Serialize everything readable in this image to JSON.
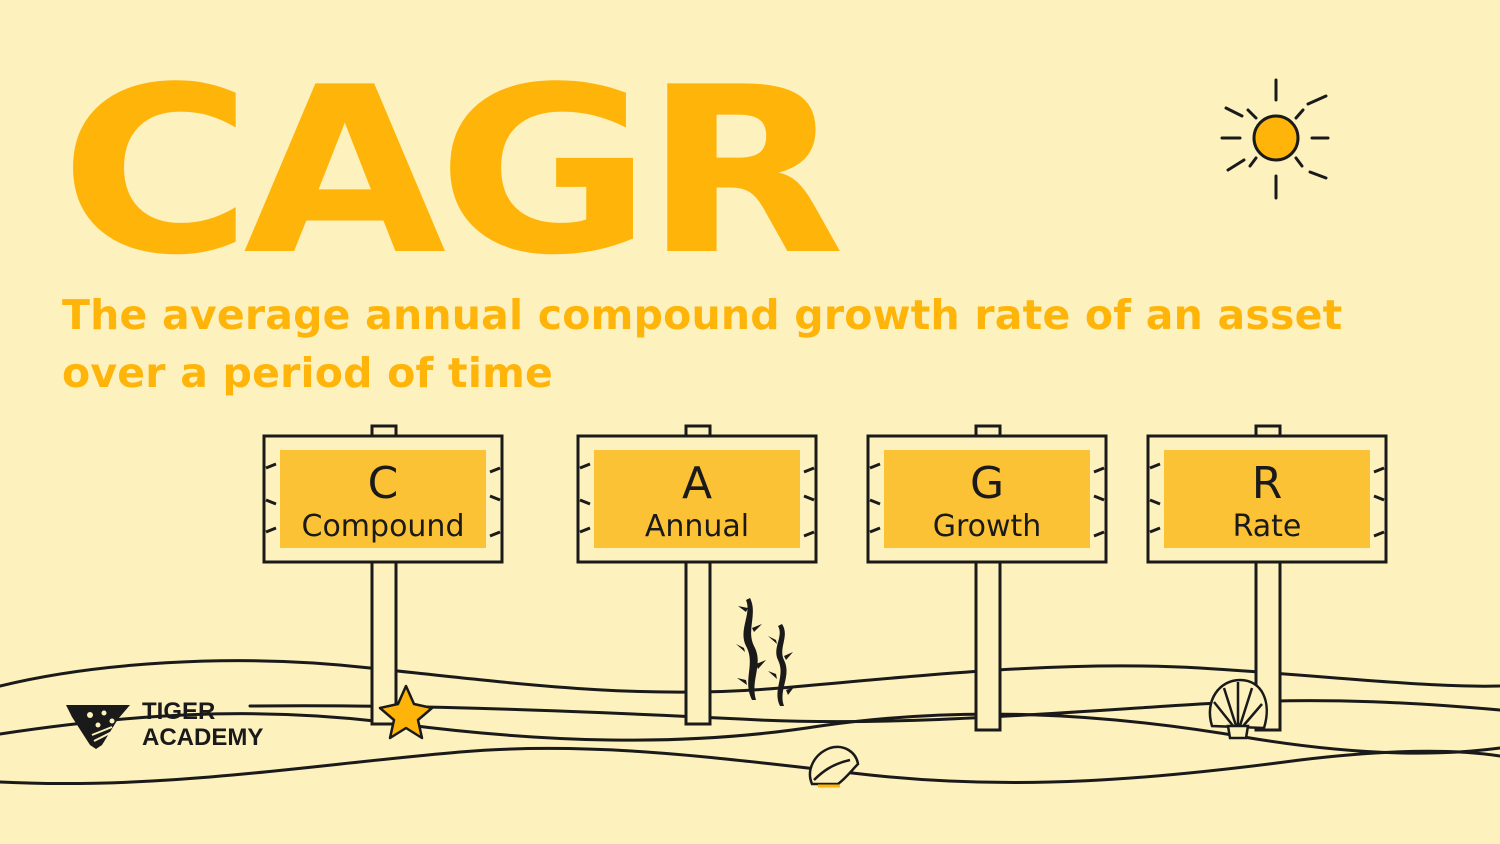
{
  "title": "CAGR",
  "subtitle": "The average annual compound growth rate of an asset over a period of time",
  "signs": [
    {
      "letter": "C",
      "word": "Compound"
    },
    {
      "letter": "A",
      "word": "Annual"
    },
    {
      "letter": "G",
      "word": "Growth"
    },
    {
      "letter": "R",
      "word": "Rate"
    }
  ],
  "logo": {
    "line1": "TIGER",
    "line2": "ACADEMY"
  },
  "colors": {
    "background": "#fdf1bd",
    "accent": "#ffb40a",
    "sign_fill": "#fcc236",
    "ink": "#1a1a1a"
  },
  "icons": [
    "sun-icon",
    "starfish-icon",
    "seaweed-icon",
    "seashell-icon",
    "conch-shell-icon",
    "tiger-academy-logo-icon"
  ]
}
